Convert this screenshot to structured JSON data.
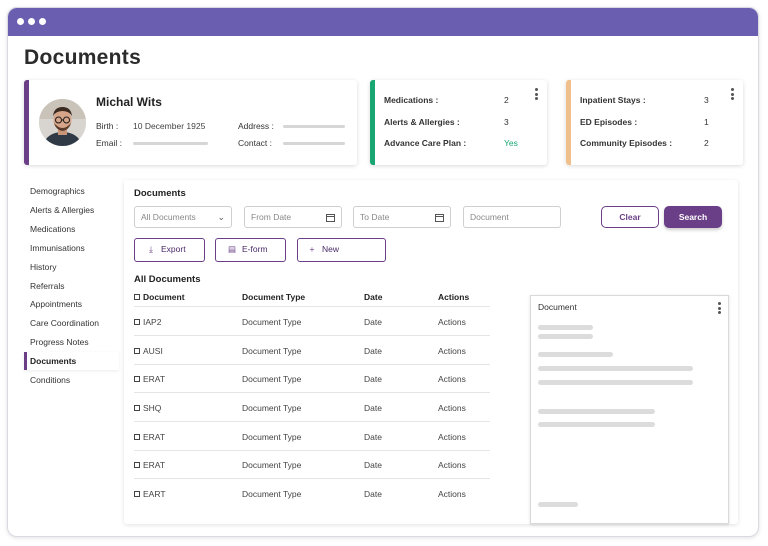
{
  "page": {
    "title": "Documents"
  },
  "patient": {
    "name": "Michal Wits",
    "birth_label": "Birth :",
    "birth_value": "10 December 1925",
    "email_label": "Email :",
    "address_label": "Address :",
    "contact_label": "Contact :"
  },
  "summary_card_2": {
    "accent": "#1aa672",
    "items": [
      {
        "label": "Medications :",
        "value": "2"
      },
      {
        "label": "Alerts & Allergies :",
        "value": "3"
      },
      {
        "label": "Advance Care Plan :",
        "value": "Yes",
        "value_color": "#1aa672"
      }
    ]
  },
  "summary_card_3": {
    "accent": "#f0c08c",
    "items": [
      {
        "label": "Inpatient Stays :",
        "value": "3"
      },
      {
        "label": "ED Episodes :",
        "value": "1"
      },
      {
        "label": "Community Episodes :",
        "value": "2"
      }
    ]
  },
  "sidebar": {
    "items": [
      {
        "label": "Demographics"
      },
      {
        "label": "Alerts & Allergies"
      },
      {
        "label": "Medications"
      },
      {
        "label": "Immunisations"
      },
      {
        "label": "History"
      },
      {
        "label": "Referrals"
      },
      {
        "label": "Appointments"
      },
      {
        "label": "Care Coordination"
      },
      {
        "label": "Progress Notes"
      },
      {
        "label": "Documents",
        "active": true
      },
      {
        "label": "Conditions"
      }
    ]
  },
  "documents": {
    "section_title": "Documents",
    "filter_select": "All Documents",
    "from_date_placeholder": "From Date",
    "to_date_placeholder": "To Date",
    "document_placeholder": "Document",
    "clear_label": "Clear",
    "search_label": "Search",
    "export_label": "Export",
    "eform_label": "E-form",
    "new_label": "New",
    "list_title": "All Documents",
    "columns": [
      "Document",
      "Document Type",
      "Date",
      "Actions"
    ],
    "rows": [
      [
        "IAP2",
        "Document Type",
        "Date",
        "Actions"
      ],
      [
        "AUSI",
        "Document Type",
        "Date",
        "Actions"
      ],
      [
        "ERAT",
        "Document Type",
        "Date",
        "Actions"
      ],
      [
        "SHQ",
        "Document Type",
        "Date",
        "Actions"
      ],
      [
        "ERAT",
        "Document Type",
        "Date",
        "Actions"
      ],
      [
        "ERAT",
        "Document Type",
        "Date",
        "Actions"
      ],
      [
        "EART",
        "Document Type",
        "Date",
        "Actions"
      ]
    ],
    "preview_title": "Document"
  },
  "colors": {
    "brand": "#6a3f87",
    "titlebar": "#6a5eb1",
    "card1_accent": "#6a3f87"
  }
}
